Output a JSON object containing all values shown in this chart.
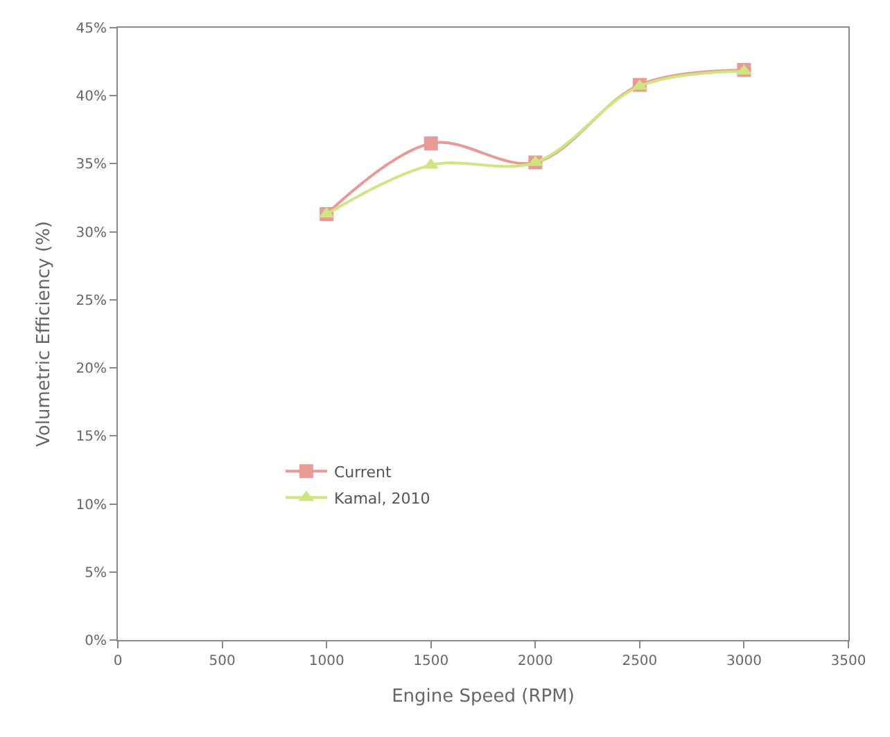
{
  "chart_data": {
    "type": "line",
    "xlabel": "Engine Speed (RPM)",
    "ylabel": "Volumetric Efficiency (%)",
    "x": [
      1000,
      1500,
      2000,
      2500,
      3000
    ],
    "series": [
      {
        "name": "Current",
        "color": "#e99a96",
        "marker": "square",
        "values": [
          31.3,
          36.5,
          35.1,
          40.8,
          41.9
        ]
      },
      {
        "name": "Kamal, 2010",
        "color": "#cde67f",
        "marker": "triangle",
        "values": [
          31.3,
          34.9,
          35.1,
          40.7,
          41.8
        ]
      }
    ],
    "xlim": [
      0,
      3500
    ],
    "xticks": [
      0,
      500,
      1000,
      1500,
      2000,
      2500,
      3000,
      3500
    ],
    "ylim": [
      0,
      45
    ],
    "yticks": [
      {
        "value": 0,
        "label": "0%"
      },
      {
        "value": 5,
        "label": "5%"
      },
      {
        "value": 10,
        "label": "10%"
      },
      {
        "value": 15,
        "label": "15%"
      },
      {
        "value": 20,
        "label": "20%"
      },
      {
        "value": 25,
        "label": "25%"
      },
      {
        "value": 30,
        "label": "30%"
      },
      {
        "value": 35,
        "label": "35%"
      },
      {
        "value": 40,
        "label": "40%"
      },
      {
        "value": 45,
        "label": "45%"
      }
    ],
    "legend": "bottom left"
  }
}
